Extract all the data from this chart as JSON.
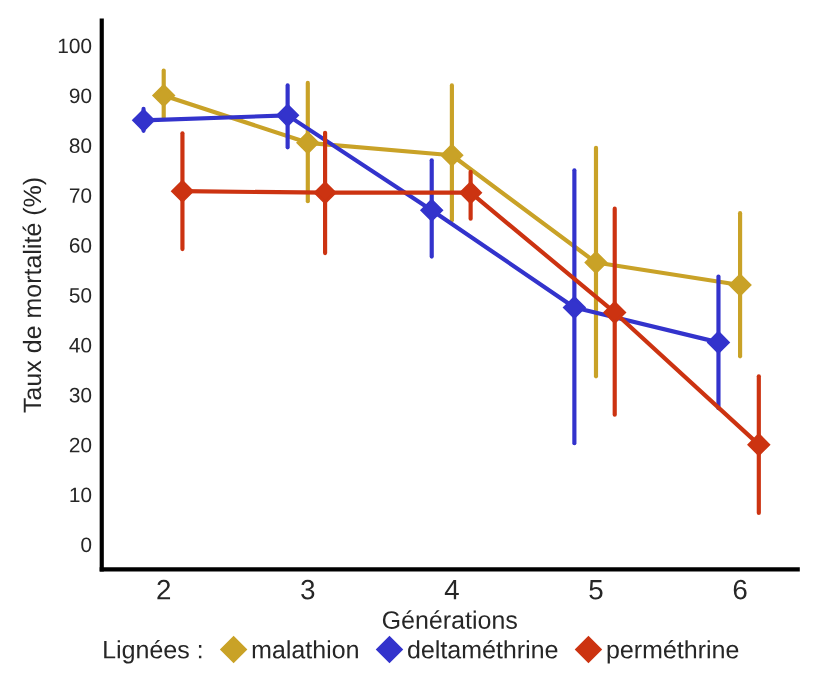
{
  "chart_data": {
    "type": "line",
    "xlabel": "Générations",
    "ylabel": "Taux de mortalité (%)",
    "legend_title": "Lignées :",
    "legend": "bottom",
    "marker": "diamond",
    "line_style": "solid",
    "grid": false,
    "xlim": [
      1.57,
      6.4
    ],
    "xticks": [
      2,
      3,
      4,
      5,
      6
    ],
    "ylim": [
      -5,
      105
    ],
    "yticks": [
      0,
      10,
      20,
      30,
      40,
      50,
      60,
      70,
      80,
      90,
      100
    ],
    "series": [
      {
        "name": "malathion",
        "color": "#c9a227",
        "x": [
          2,
          3,
          4,
          5,
          6
        ],
        "values": [
          90,
          80.5,
          78,
          56.5,
          52
        ],
        "errors": [
          [
            85.5,
            95
          ],
          [
            68.8,
            92.5
          ],
          [
            65,
            92
          ],
          [
            33.7,
            79.5
          ],
          [
            37.7,
            66.4
          ]
        ]
      },
      {
        "name": "deltaméthrine",
        "color": "#3333cc",
        "x": [
          1.86,
          2.86,
          3.86,
          4.85,
          5.85
        ],
        "values": [
          85,
          86,
          67,
          47.5,
          40.5
        ],
        "errors": [
          [
            82.9,
            87.3
          ],
          [
            79.6,
            92
          ],
          [
            57.7,
            77
          ],
          [
            20.3,
            75
          ],
          [
            27.3,
            53.7
          ]
        ]
      },
      {
        "name": "perméthrine",
        "color": "#cc3311",
        "x": [
          2.13,
          3.12,
          4.13,
          5.13,
          6.13
        ],
        "values": [
          70.8,
          70.5,
          70.5,
          46.5,
          20
        ],
        "errors": [
          [
            59.2,
            82.4
          ],
          [
            58.4,
            82.5
          ],
          [
            65.3,
            74.7
          ],
          [
            26,
            67.3
          ],
          [
            6.3,
            33.7
          ]
        ]
      }
    ]
  }
}
